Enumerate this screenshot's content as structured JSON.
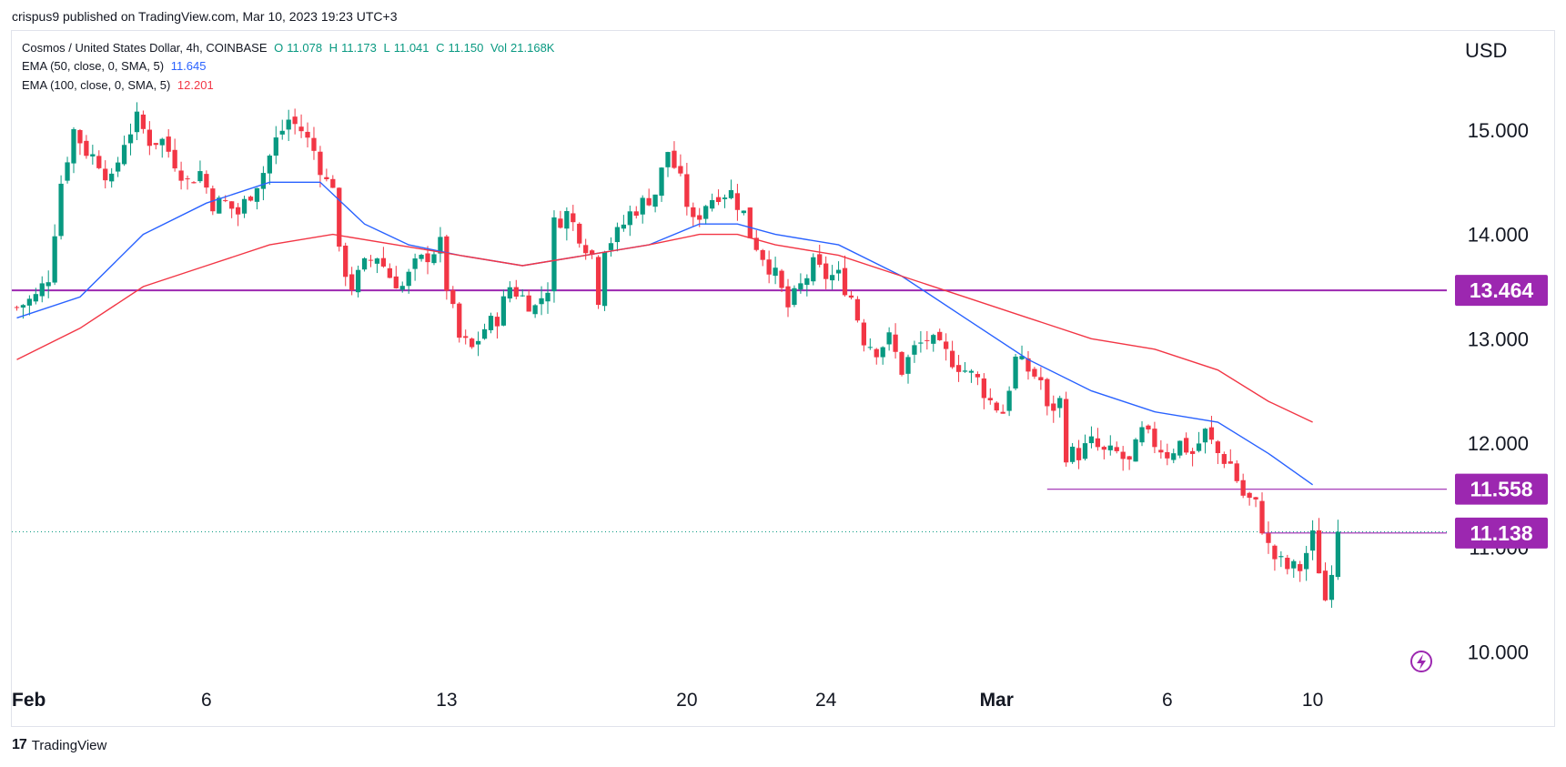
{
  "header": {
    "published_line": "crispus9 published on TradingView.com, Mar 10, 2023 19:23 UTC+3"
  },
  "legend": {
    "symbol": "Cosmos / United States Dollar, 4h, COINBASE",
    "ohlc": [
      {
        "label": "O",
        "value": "11.078"
      },
      {
        "label": "H",
        "value": "11.173"
      },
      {
        "label": "L",
        "value": "11.041"
      },
      {
        "label": "C",
        "value": "11.150"
      },
      {
        "label": "Vol",
        "value": "21.168K"
      }
    ],
    "ema50": {
      "label": "EMA (50, close, 0, SMA, 5)",
      "value": "11.645"
    },
    "ema100": {
      "label": "EMA (100, close, 0, SMA, 5)",
      "value": "12.201"
    }
  },
  "axis": {
    "currency": "USD"
  },
  "footer": {
    "brand": "TradingView"
  },
  "colors": {
    "up": "#089981",
    "down": "#f23645",
    "ema50": "#2962ff",
    "ema100": "#f23645",
    "level_line": "#9c27b0",
    "price_badge": "#9c27b0"
  },
  "chart_data": {
    "type": "candlestick",
    "ylim": [
      9.75,
      15.95
    ],
    "y_ticks": [
      "10.000",
      "11.000",
      "12.000",
      "13.000",
      "14.000",
      "15.000"
    ],
    "x_ticks": [
      {
        "label": "Feb",
        "bar": 0
      },
      {
        "label": "6",
        "bar": 30
      },
      {
        "label": "13",
        "bar": 68
      },
      {
        "label": "20",
        "bar": 106
      },
      {
        "label": "24",
        "bar": 128
      },
      {
        "label": "Mar",
        "bar": 155
      },
      {
        "label": "6",
        "bar": 182
      },
      {
        "label": "10",
        "bar": 205
      }
    ],
    "x_bar_count": 226,
    "horizontal_levels": [
      {
        "label": "13.464",
        "value": 13.464,
        "from_bar": 0
      },
      {
        "label": "11.558",
        "value": 11.558,
        "from_bar": 163
      },
      {
        "label": "11.138",
        "value": 11.138,
        "from_bar": 197
      }
    ],
    "current_price": 11.15,
    "close_path": [
      [
        0,
        13.3
      ],
      [
        3,
        13.4
      ],
      [
        5,
        13.6
      ],
      [
        7,
        14.5
      ],
      [
        9,
        15.0
      ],
      [
        11,
        14.8
      ],
      [
        13,
        14.7
      ],
      [
        15,
        14.5
      ],
      [
        17,
        14.9
      ],
      [
        19,
        15.1
      ],
      [
        21,
        14.9
      ],
      [
        23,
        14.9
      ],
      [
        25,
        14.7
      ],
      [
        27,
        14.5
      ],
      [
        29,
        14.6
      ],
      [
        31,
        14.3
      ],
      [
        33,
        14.3
      ],
      [
        35,
        14.2
      ],
      [
        37,
        14.4
      ],
      [
        39,
        14.6
      ],
      [
        41,
        14.9
      ],
      [
        43,
        15.1
      ],
      [
        45,
        15.0
      ],
      [
        47,
        14.8
      ],
      [
        49,
        14.5
      ],
      [
        50,
        14.5
      ],
      [
        51,
        13.8
      ],
      [
        53,
        13.5
      ],
      [
        55,
        13.7
      ],
      [
        57,
        13.8
      ],
      [
        59,
        13.6
      ],
      [
        61,
        13.5
      ],
      [
        63,
        13.7
      ],
      [
        65,
        13.8
      ],
      [
        67,
        13.9
      ],
      [
        68,
        13.5
      ],
      [
        70,
        13.0
      ],
      [
        72,
        12.9
      ],
      [
        74,
        13.1
      ],
      [
        76,
        13.2
      ],
      [
        78,
        13.5
      ],
      [
        80,
        13.4
      ],
      [
        82,
        13.3
      ],
      [
        84,
        13.5
      ],
      [
        85,
        14.1
      ],
      [
        87,
        14.2
      ],
      [
        89,
        14.0
      ],
      [
        91,
        13.8
      ],
      [
        92,
        13.4
      ],
      [
        93,
        13.9
      ],
      [
        95,
        14.0
      ],
      [
        97,
        14.2
      ],
      [
        99,
        14.3
      ],
      [
        101,
        14.4
      ],
      [
        103,
        14.8
      ],
      [
        105,
        14.5
      ],
      [
        107,
        14.1
      ],
      [
        109,
        14.3
      ],
      [
        111,
        14.4
      ],
      [
        113,
        14.4
      ],
      [
        115,
        14.2
      ],
      [
        116,
        14.0
      ],
      [
        118,
        13.8
      ],
      [
        120,
        13.6
      ],
      [
        122,
        13.3
      ],
      [
        124,
        13.5
      ],
      [
        126,
        13.7
      ],
      [
        128,
        13.6
      ],
      [
        130,
        13.6
      ],
      [
        132,
        13.4
      ],
      [
        133,
        13.2
      ],
      [
        134,
        13.0
      ],
      [
        136,
        12.9
      ],
      [
        138,
        13.0
      ],
      [
        140,
        12.7
      ],
      [
        142,
        12.9
      ],
      [
        144,
        13.0
      ],
      [
        146,
        12.9
      ],
      [
        148,
        12.8
      ],
      [
        150,
        12.7
      ],
      [
        152,
        12.6
      ],
      [
        154,
        12.4
      ],
      [
        156,
        12.3
      ],
      [
        158,
        12.8
      ],
      [
        160,
        12.7
      ],
      [
        162,
        12.6
      ],
      [
        163,
        12.3
      ],
      [
        165,
        12.4
      ],
      [
        166,
        11.9
      ],
      [
        168,
        11.9
      ],
      [
        170,
        12.0
      ],
      [
        172,
        11.9
      ],
      [
        174,
        11.9
      ],
      [
        176,
        11.8
      ],
      [
        178,
        12.1
      ],
      [
        180,
        12.0
      ],
      [
        182,
        11.9
      ],
      [
        184,
        12.0
      ],
      [
        186,
        11.9
      ],
      [
        188,
        12.1
      ],
      [
        190,
        11.9
      ],
      [
        192,
        11.8
      ],
      [
        194,
        11.5
      ],
      [
        196,
        11.4
      ],
      [
        198,
        11.0
      ],
      [
        199,
        10.9
      ],
      [
        201,
        10.8
      ],
      [
        203,
        10.8
      ],
      [
        205,
        11.1
      ],
      [
        207,
        10.5
      ],
      [
        209,
        11.15
      ]
    ],
    "series": [
      {
        "name": "EMA (50, close, 0, SMA, 5)",
        "points": [
          [
            0,
            13.2
          ],
          [
            10,
            13.4
          ],
          [
            20,
            14.0
          ],
          [
            30,
            14.3
          ],
          [
            40,
            14.5
          ],
          [
            48,
            14.5
          ],
          [
            55,
            14.1
          ],
          [
            62,
            13.9
          ],
          [
            70,
            13.8
          ],
          [
            80,
            13.7
          ],
          [
            90,
            13.8
          ],
          [
            100,
            13.9
          ],
          [
            108,
            14.1
          ],
          [
            114,
            14.1
          ],
          [
            120,
            14.0
          ],
          [
            130,
            13.9
          ],
          [
            140,
            13.6
          ],
          [
            150,
            13.2
          ],
          [
            160,
            12.8
          ],
          [
            170,
            12.5
          ],
          [
            180,
            12.3
          ],
          [
            190,
            12.2
          ],
          [
            198,
            11.9
          ],
          [
            205,
            11.6
          ]
        ]
      },
      {
        "name": "EMA (100, close, 0, SMA, 5)",
        "points": [
          [
            0,
            12.8
          ],
          [
            10,
            13.1
          ],
          [
            20,
            13.5
          ],
          [
            30,
            13.7
          ],
          [
            40,
            13.9
          ],
          [
            50,
            14.0
          ],
          [
            60,
            13.9
          ],
          [
            70,
            13.8
          ],
          [
            80,
            13.7
          ],
          [
            90,
            13.8
          ],
          [
            100,
            13.9
          ],
          [
            108,
            14.0
          ],
          [
            114,
            14.0
          ],
          [
            120,
            13.9
          ],
          [
            130,
            13.8
          ],
          [
            140,
            13.6
          ],
          [
            150,
            13.4
          ],
          [
            160,
            13.2
          ],
          [
            170,
            13.0
          ],
          [
            180,
            12.9
          ],
          [
            190,
            12.7
          ],
          [
            198,
            12.4
          ],
          [
            205,
            12.2
          ]
        ]
      }
    ]
  }
}
